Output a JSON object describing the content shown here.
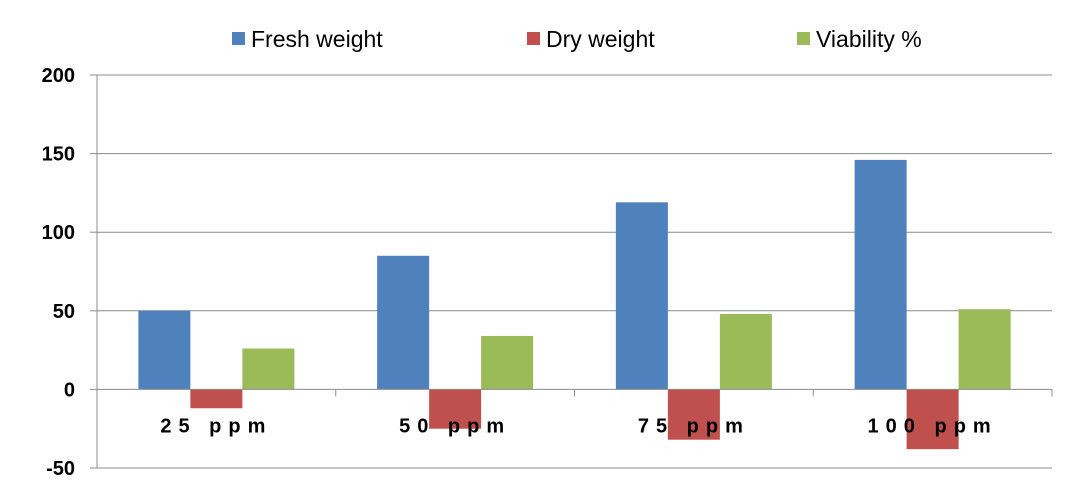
{
  "chart_data": {
    "type": "bar",
    "title": "",
    "xlabel": "",
    "ylabel": "",
    "categories": [
      "25 ppm",
      "50 ppm",
      "75 ppm",
      "100 ppm"
    ],
    "series": [
      {
        "name": "Fresh weight",
        "color": "#4f81bd",
        "values": [
          50,
          85,
          119,
          146
        ]
      },
      {
        "name": "Dry weight",
        "color": "#c0504d",
        "values": [
          -12,
          -25,
          -32,
          -38
        ]
      },
      {
        "name": "Viability %",
        "color": "#9bbb59",
        "values": [
          26,
          34,
          48,
          51
        ]
      }
    ],
    "ylim": [
      -50,
      200
    ],
    "yticks": [
      -50,
      0,
      50,
      100,
      150,
      200
    ],
    "grid": true,
    "legend_position": "top"
  }
}
